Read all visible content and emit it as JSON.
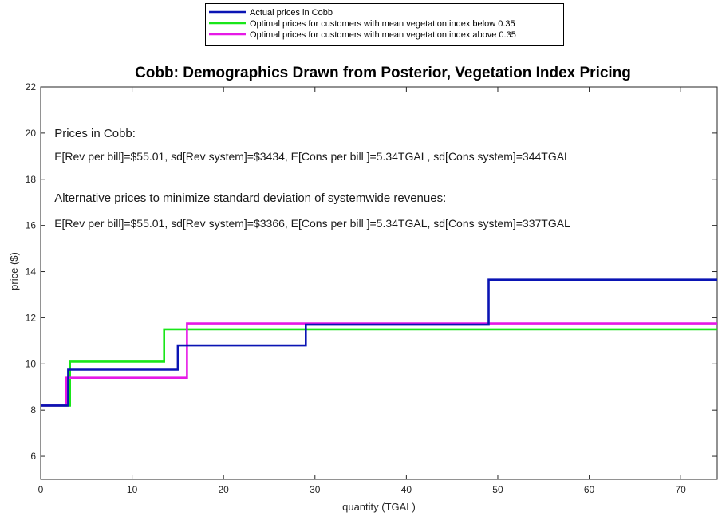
{
  "chart_data": {
    "type": "line",
    "title": "Cobb: Demographics Drawn from Posterior,  Vegetation Index Pricing",
    "xlabel": "quantity (TGAL)",
    "ylabel": "price ($)",
    "xlim": [
      0,
      74
    ],
    "ylim": [
      5,
      22
    ],
    "xticks": [
      0,
      10,
      20,
      30,
      40,
      50,
      60,
      70
    ],
    "yticks": [
      6,
      8,
      10,
      12,
      14,
      16,
      18,
      20,
      22
    ],
    "grid": false,
    "legend_position": "top-center",
    "series": [
      {
        "name": "Actual prices  in Cobb",
        "color": "#0a14b4",
        "step": true,
        "x": [
          0,
          3,
          3,
          15,
          15,
          29,
          29,
          49,
          49,
          74
        ],
        "y": [
          8.2,
          8.2,
          9.75,
          9.75,
          10.8,
          10.8,
          11.7,
          11.7,
          13.65,
          13.65
        ]
      },
      {
        "name": "Optimal prices for customers with mean vegetation index below 0.35",
        "color": "#19e619",
        "step": true,
        "x": [
          0,
          3.2,
          3.2,
          13.5,
          13.5,
          74
        ],
        "y": [
          8.2,
          8.2,
          10.1,
          10.1,
          11.5,
          11.5
        ]
      },
      {
        "name": "Optimal prices for customers with mean vegetation index above 0.35",
        "color": "#e619e6",
        "step": true,
        "x": [
          0,
          2.8,
          2.8,
          16,
          16,
          74
        ],
        "y": [
          8.2,
          8.2,
          9.4,
          9.4,
          11.75,
          11.75
        ]
      }
    ],
    "annotations": [
      {
        "text": "Prices in Cobb:",
        "x": 1.5,
        "y": 20,
        "size": "large"
      },
      {
        "text": "E[Rev per bill]=$55.01, sd[Rev system]=$3434, E[Cons per bill ]=5.34TGAL, sd[Cons system]=344TGAL",
        "x": 1.5,
        "y": 19,
        "size": "small"
      },
      {
        "text": "Alternative prices to minimize standard deviation of systemwide revenues:",
        "x": 1.5,
        "y": 17.2,
        "size": "large"
      },
      {
        "text": "E[Rev per bill]=$55.01, sd[Rev system]=$3366, E[Cons per bill ]=5.34TGAL, sd[Cons system]=337TGAL",
        "x": 1.5,
        "y": 16.1,
        "size": "small"
      }
    ]
  }
}
